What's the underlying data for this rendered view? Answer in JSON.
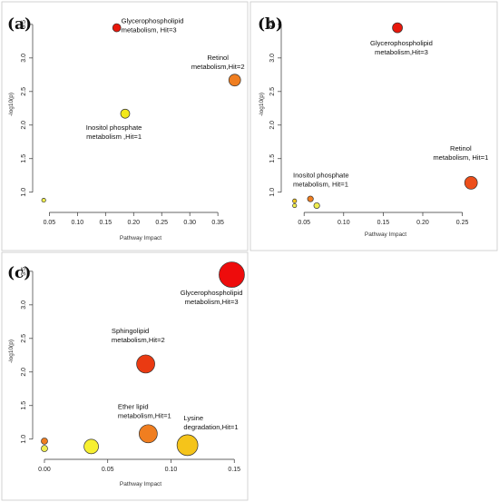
{
  "chart_data": [
    {
      "type": "scatter",
      "panel_label": "(a)",
      "xlabel": "Pathway Impact",
      "ylabel": "-log10(p)",
      "xlim": [
        0.03,
        0.395
      ],
      "ylim": [
        0.78,
        3.62
      ],
      "xticks": [
        0.05,
        0.1,
        0.15,
        0.2,
        0.25,
        0.3,
        0.35
      ],
      "xtick_labels": [
        "0.05",
        "0.10",
        "0.15",
        "0.20",
        "0.25",
        "0.30",
        "0.35"
      ],
      "yticks": [
        1.0,
        1.5,
        2.0,
        2.5,
        3.0,
        3.5
      ],
      "ytick_labels": [
        "1.0",
        "1.5",
        "2.0",
        "2.5",
        "3.0",
        "3.5"
      ],
      "points": [
        {
          "x": 0.17,
          "y": 3.45,
          "r": 4.5,
          "color": "#e8180c"
        },
        {
          "x": 0.38,
          "y": 2.67,
          "r": 6.5,
          "color": "#f07e20"
        },
        {
          "x": 0.185,
          "y": 2.17,
          "r": 5.0,
          "color": "#f2e81a"
        },
        {
          "x": 0.04,
          "y": 0.88,
          "r": 2.2,
          "color": "#f0ee50"
        }
      ],
      "annotations": [
        {
          "lines": [
            "Glycerophospholipid",
            "metabolism, Hit=3"
          ],
          "x": 0.178,
          "y": 3.52,
          "anchor": "start"
        },
        {
          "lines": [
            "Retinol",
            "metabolism,Hit=2"
          ],
          "x": 0.35,
          "y": 2.97,
          "anchor": "middle"
        },
        {
          "lines": [
            "Inositol phosphate",
            "metabolism ,Hit=1"
          ],
          "x": 0.165,
          "y": 1.93,
          "anchor": "middle"
        }
      ]
    },
    {
      "type": "scatter",
      "panel_label": "(b)",
      "xlabel": "Pathway Impact",
      "ylabel": "-log10(p)",
      "xlim": [
        0.028,
        0.278
      ],
      "ylim": [
        0.78,
        3.62
      ],
      "xticks": [
        0.05,
        0.1,
        0.15,
        0.2,
        0.25
      ],
      "xtick_labels": [
        "0.05",
        "0.10",
        "0.15",
        "0.20",
        "0.25"
      ],
      "yticks": [
        1.0,
        1.5,
        2.0,
        2.5,
        3.0,
        3.5
      ],
      "ytick_labels": [
        "1.0",
        "1.5",
        "2.0",
        "2.5",
        "3.0",
        "3.5"
      ],
      "points": [
        {
          "x": 0.168,
          "y": 3.45,
          "r": 5.5,
          "color": "#e8180c"
        },
        {
          "x": 0.261,
          "y": 1.14,
          "r": 7.0,
          "color": "#ed4e1a"
        },
        {
          "x": 0.058,
          "y": 0.9,
          "r": 3.2,
          "color": "#f07e20"
        },
        {
          "x": 0.066,
          "y": 0.8,
          "r": 3.2,
          "color": "#f0ee50"
        },
        {
          "x": 0.038,
          "y": 0.87,
          "r": 2.2,
          "color": "#f2c81a"
        },
        {
          "x": 0.038,
          "y": 0.8,
          "r": 2.2,
          "color": "#f0ee50"
        }
      ],
      "annotations": [
        {
          "lines": [
            "Glycerophospholipid",
            "metabolism,Hit=3"
          ],
          "x": 0.173,
          "y": 3.19,
          "anchor": "middle"
        },
        {
          "lines": [
            "Retinol",
            "metabolism, Hit=1"
          ],
          "x": 0.248,
          "y": 1.62,
          "anchor": "middle"
        },
        {
          "lines": [
            "Inositol phosphate",
            "metabolism, Hit=1"
          ],
          "x": 0.036,
          "y": 1.22,
          "anchor": "start"
        }
      ]
    },
    {
      "type": "scatter",
      "panel_label": "(c)",
      "xlabel": "Pathway Impact",
      "ylabel": "-log10(p)",
      "xlim": [
        -0.005,
        0.157
      ],
      "ylim": [
        0.78,
        3.62
      ],
      "xticks": [
        0.0,
        0.05,
        0.1,
        0.15
      ],
      "xtick_labels": [
        "0.00",
        "0.05",
        "0.10",
        "0.15"
      ],
      "yticks": [
        1.0,
        1.5,
        2.0,
        2.5,
        3.0,
        3.5
      ],
      "ytick_labels": [
        "1.0",
        "1.5",
        "2.0",
        "2.5",
        "3.0",
        "3.5"
      ],
      "points": [
        {
          "x": 0.148,
          "y": 3.45,
          "r": 14,
          "color": "#ee0c0c"
        },
        {
          "x": 0.08,
          "y": 2.12,
          "r": 10,
          "color": "#ea3a12"
        },
        {
          "x": 0.082,
          "y": 1.08,
          "r": 10,
          "color": "#f07e20"
        },
        {
          "x": 0.113,
          "y": 0.91,
          "r": 11.5,
          "color": "#f5c41a"
        },
        {
          "x": 0.037,
          "y": 0.89,
          "r": 8,
          "color": "#f7f030"
        },
        {
          "x": 0.0,
          "y": 0.97,
          "r": 3.5,
          "color": "#f07e20"
        },
        {
          "x": 0.0,
          "y": 0.86,
          "r": 3.5,
          "color": "#f0ee50"
        }
      ],
      "annotations": [
        {
          "lines": [
            "Glycerophospholipid",
            "metabolism,Hit=3"
          ],
          "x": 0.132,
          "y": 3.15,
          "anchor": "middle"
        },
        {
          "lines": [
            "Sphingolipid",
            "metabolism,Hit=2"
          ],
          "x": 0.053,
          "y": 2.58,
          "anchor": "start"
        },
        {
          "lines": [
            "Ether lipid",
            "metabolism,Hit=1"
          ],
          "x": 0.058,
          "y": 1.45,
          "anchor": "start"
        },
        {
          "lines": [
            "Lysine",
            "degradation,Hit=1"
          ],
          "x": 0.11,
          "y": 1.28,
          "anchor": "start"
        }
      ]
    }
  ]
}
